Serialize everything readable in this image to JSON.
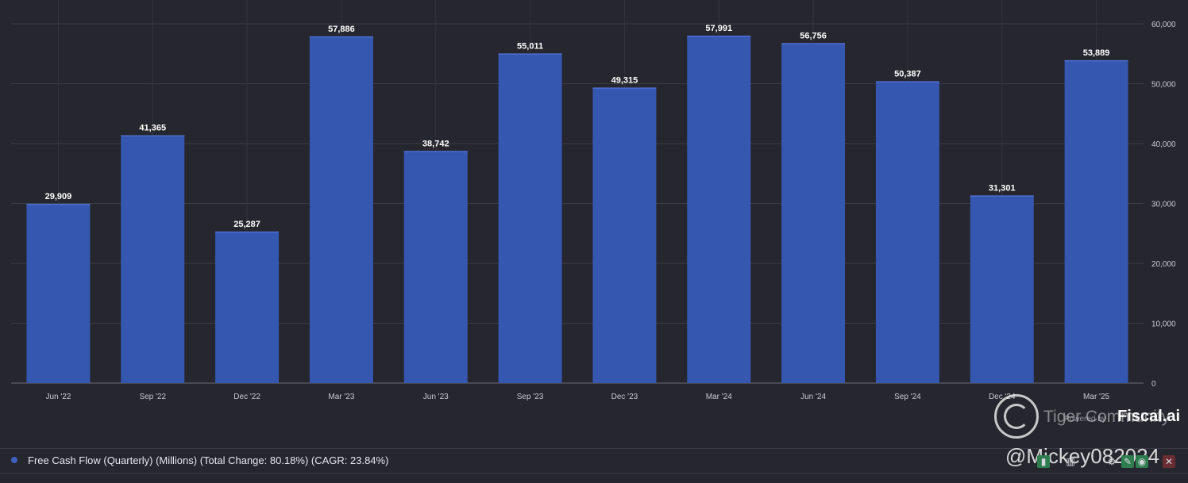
{
  "chart_data": {
    "type": "bar",
    "categories": [
      "Jun '22",
      "Sep '22",
      "Dec '22",
      "Mar '23",
      "Jun '23",
      "Sep '23",
      "Dec '23",
      "Mar '24",
      "Jun '24",
      "Sep '24",
      "Dec '24",
      "Mar '25"
    ],
    "values": [
      29909,
      41365,
      25287,
      57886,
      38742,
      55011,
      49315,
      57991,
      56756,
      50387,
      31301,
      53889
    ],
    "value_labels": [
      "29,909",
      "41,365",
      "25,287",
      "57,886",
      "38,742",
      "55,011",
      "49,315",
      "57,991",
      "56,756",
      "50,387",
      "31,301",
      "53,889"
    ],
    "y_ticks": [
      0,
      10000,
      20000,
      30000,
      40000,
      50000,
      60000
    ],
    "y_tick_labels": [
      "0",
      "10,000",
      "20,000",
      "30,000",
      "40,000",
      "50,000",
      "60,000"
    ],
    "ylim": [
      0,
      60000
    ],
    "y_axis_side": "right",
    "grid": true,
    "bar_color": "#3557b0",
    "background": "#26262e",
    "legend": {
      "placement": "bottom-left",
      "text": "Free Cash Flow (Quarterly) (Millions) (Total Change: 80.18%) (CAGR: 23.84%)",
      "color": "#3f5fc0"
    }
  },
  "branding": {
    "powered_by": "Powered by",
    "name": "Fiscal.ai"
  },
  "watermark": {
    "line1": "Tiger Community",
    "line2": "@Mickey082024"
  },
  "toolbar": {
    "icons": [
      "bar-chart-icon",
      "stats-icon",
      "settings-icon",
      "edit-icon",
      "share-icon",
      "close-icon"
    ],
    "close_glyph": "✕"
  }
}
